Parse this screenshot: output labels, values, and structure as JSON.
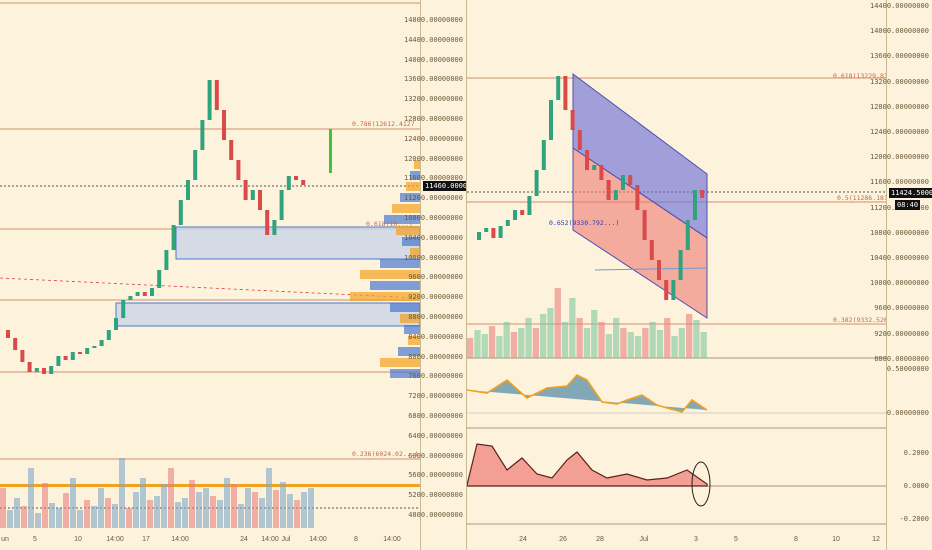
{
  "colors": {
    "background": "#fdf3dc",
    "candle_up": "#2fa37d",
    "candle_down": "#d94a4a",
    "channel_blue": "#6f72d9",
    "channel_red": "#ef7b73",
    "box_blue": "#4a78d0",
    "orange": "#f2a11f"
  },
  "left_chart": {
    "price_ticks": [
      "14800.00000000",
      "14400.00000000",
      "14000.00000000",
      "13600.00000000",
      "13200.00000000",
      "12800.00000000",
      "12400.00000000",
      "12000.00000000",
      "11600.00000000",
      "11200.00000000",
      "10800.00000000",
      "10400.00000000",
      "10000.00000000",
      "9600.00000000",
      "9200.00000000",
      "8800.00000000",
      "8400.00000000",
      "8000.00000000",
      "7600.00000000",
      "7200.00000000",
      "6800.00000000",
      "6400.00000000",
      "6000.00000000",
      "5600.00000000",
      "5200.00000000",
      "4800.00000000"
    ],
    "current_price": "11460.00000000",
    "fib_labels": [
      "0.786(12612.4127",
      "0.618(10...)",
      "0.236(6024.02...)"
    ],
    "time_ticks": [
      "un",
      "5",
      "10",
      "14:00",
      "17",
      "14:00",
      "24",
      "14:00",
      "Jul",
      "14:00",
      "8",
      "14:00"
    ]
  },
  "right_chart": {
    "price_ticks": [
      "14400.00000000",
      "14000.00000000",
      "13600.00000000",
      "13200.00000000",
      "12800.00000000",
      "12400.00000000",
      "12000.00000000",
      "11600.00000000",
      "11200.00000000",
      "10800.00000000",
      "10400.00000000",
      "10000.00000000",
      "9600.00000000",
      "9200.00000000",
      "8800.00000000"
    ],
    "current_price": "11424.50000000",
    "countdown": "08:40",
    "fib_labels": [
      "0.618(13229.83774880)",
      "0.5(11286.18197326)",
      "0.652(9330.792...)",
      "0.382(9332.52619765)"
    ],
    "ind1_ticks": [
      "0.50000000",
      "0.00000000"
    ],
    "ind2_ticks": [
      "0.2000",
      "0.0000",
      "-0.2000"
    ],
    "time_ticks": [
      "24",
      "26",
      "28",
      "Jul",
      "3",
      "5",
      "8",
      "10",
      "12"
    ]
  }
}
